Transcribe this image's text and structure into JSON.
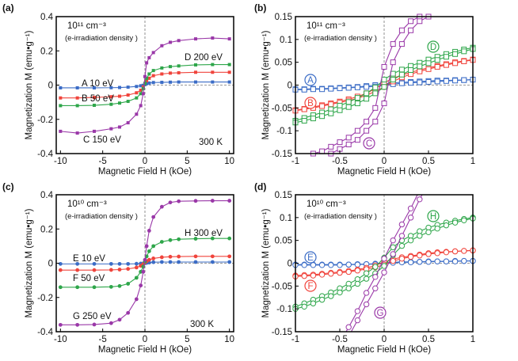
{
  "colors": {
    "blue": "#3b6cc6",
    "red": "#f0443c",
    "green": "#2ea64a",
    "purple": "#9a38a8"
  },
  "chart_data": [
    {
      "panel": "(a)",
      "type": "line",
      "marker": "filled-square",
      "xlabel": "Magnetic Field H (kOe)",
      "ylabel": "Magnetization M (emu•g⁻¹)",
      "xlim": [
        -10.5,
        10.5
      ],
      "ylim": [
        -0.4,
        0.4
      ],
      "xticks": [
        "-10",
        "-5",
        "0",
        "5",
        "10"
      ],
      "xtick_values": [
        -10,
        -5,
        0,
        5,
        10
      ],
      "yticks": [
        "-0.4",
        "-0.2",
        "0",
        "0.2",
        "0.4"
      ],
      "ytick_values": [
        -0.4,
        -0.2,
        0,
        0.2,
        0.4
      ],
      "density": "10¹¹ cm⁻³",
      "density_note": "(e-irradiation density )",
      "temperature": "300 K",
      "x": [
        -10,
        -8,
        -6,
        -4,
        -3,
        -2,
        -1,
        -0.5,
        -0.2,
        0,
        0.2,
        0.5,
        1,
        2,
        3,
        4,
        6,
        8,
        10
      ],
      "series": [
        {
          "name": "A 10 eV",
          "color": "blue",
          "values": [
            -0.016,
            -0.016,
            -0.016,
            -0.015,
            -0.014,
            -0.012,
            -0.008,
            -0.004,
            -0.001,
            0.003,
            0.008,
            0.012,
            0.015,
            0.016,
            0.017,
            0.018,
            0.018,
            0.018,
            0.018
          ]
        },
        {
          "name": "B 50 eV",
          "color": "red",
          "values": [
            -0.075,
            -0.075,
            -0.072,
            -0.068,
            -0.065,
            -0.058,
            -0.045,
            -0.03,
            -0.01,
            0.01,
            0.025,
            0.04,
            0.055,
            0.065,
            0.07,
            0.072,
            0.075,
            0.075,
            0.075
          ]
        },
        {
          "name": "D 200 eV",
          "color": "green",
          "values": [
            -0.12,
            -0.12,
            -0.118,
            -0.112,
            -0.105,
            -0.095,
            -0.075,
            -0.05,
            -0.02,
            0.01,
            0.04,
            0.065,
            0.085,
            0.1,
            0.108,
            0.112,
            0.118,
            0.12,
            0.12
          ]
        },
        {
          "name": "C 150 eV",
          "color": "purple",
          "values": [
            -0.27,
            -0.28,
            -0.27,
            -0.255,
            -0.245,
            -0.22,
            -0.17,
            -0.12,
            -0.05,
            0.05,
            0.13,
            0.16,
            0.19,
            0.23,
            0.25,
            0.26,
            0.27,
            0.275,
            0.27
          ]
        }
      ]
    },
    {
      "panel": "(b)",
      "type": "line",
      "marker": "open-square",
      "xlabel": "Magnetic Field H (kOe)",
      "ylabel": "Magnetization M (emu•g⁻¹)",
      "xlim": [
        -1,
        1
      ],
      "ylim": [
        -0.15,
        0.15
      ],
      "xticks": [
        "-1",
        "-0.5",
        "0",
        "0.5",
        "1"
      ],
      "xtick_values": [
        -1,
        -0.5,
        0,
        0.5,
        1
      ],
      "yticks": [
        "-0.15",
        "-0.1",
        "-0.05",
        "0",
        "0.05",
        "0.1",
        "0.15"
      ],
      "ytick_values": [
        -0.15,
        -0.1,
        -0.05,
        0,
        0.05,
        0.1,
        0.15
      ],
      "density": "10¹¹ cm⁻³",
      "density_note": "(e-irradiation density )",
      "x": [
        -1,
        -0.9,
        -0.8,
        -0.7,
        -0.6,
        -0.5,
        -0.4,
        -0.3,
        -0.2,
        -0.1,
        0,
        0.1,
        0.2,
        0.3,
        0.4,
        0.5,
        0.6,
        0.7,
        0.8,
        0.9,
        1
      ],
      "series": [
        {
          "name": "A",
          "color": "blue",
          "branches": [
            [
              -0.009,
              -0.009,
              -0.008,
              -0.008,
              -0.007,
              -0.006,
              -0.005,
              -0.004,
              -0.002,
              0.0,
              0.003,
              0.005,
              0.006,
              0.007,
              0.008,
              0.009,
              0.01,
              0.01,
              0.011,
              0.011,
              0.012
            ],
            [
              -0.01,
              -0.01,
              -0.009,
              -0.009,
              -0.008,
              -0.007,
              -0.006,
              -0.005,
              -0.004,
              -0.003,
              -0.001,
              0.002,
              0.004,
              0.005,
              0.006,
              0.007,
              0.008,
              0.009,
              0.01,
              0.011,
              0.012
            ]
          ]
        },
        {
          "name": "B",
          "color": "red",
          "branches": [
            [
              -0.055,
              -0.052,
              -0.048,
              -0.044,
              -0.04,
              -0.036,
              -0.031,
              -0.025,
              -0.018,
              -0.008,
              0.005,
              0.015,
              0.022,
              0.028,
              0.033,
              0.038,
              0.042,
              0.046,
              0.05,
              0.053,
              0.056
            ],
            [
              -0.056,
              -0.053,
              -0.05,
              -0.046,
              -0.042,
              -0.038,
              -0.034,
              -0.029,
              -0.022,
              -0.014,
              -0.004,
              0.008,
              0.017,
              0.024,
              0.03,
              0.035,
              0.04,
              0.044,
              0.048,
              0.052,
              0.055
            ]
          ]
        },
        {
          "name": "D",
          "color": "green",
          "branches": [
            [
              -0.078,
              -0.072,
              -0.066,
              -0.06,
              -0.053,
              -0.045,
              -0.037,
              -0.028,
              -0.018,
              -0.005,
              0.012,
              0.025,
              0.034,
              0.042,
              0.049,
              0.056,
              0.062,
              0.068,
              0.073,
              0.078,
              0.082
            ],
            [
              -0.082,
              -0.078,
              -0.073,
              -0.068,
              -0.062,
              -0.055,
              -0.048,
              -0.04,
              -0.03,
              -0.018,
              -0.004,
              0.012,
              0.023,
              0.033,
              0.041,
              0.048,
              0.055,
              0.062,
              0.068,
              0.074,
              0.079
            ]
          ]
        },
        {
          "name": "C",
          "color": "purple",
          "branches": [
            [
              -0.16,
              -0.155,
              -0.15,
              -0.145,
              -0.135,
              -0.125,
              -0.115,
              -0.1,
              -0.08,
              -0.05,
              0.04,
              0.09,
              0.12,
              0.14,
              0.15,
              0.155,
              0.16,
              0.165,
              0.17,
              0.17,
              0.17
            ],
            [
              -0.17,
              -0.165,
              -0.16,
              -0.155,
              -0.15,
              -0.14,
              -0.13,
              -0.12,
              -0.1,
              -0.08,
              -0.04,
              0.05,
              0.09,
              0.12,
              0.14,
              0.15,
              0.155,
              0.16,
              0.165,
              0.17,
              0.17
            ]
          ]
        }
      ]
    },
    {
      "panel": "(c)",
      "type": "line",
      "marker": "filled-circle",
      "xlabel": "Magnetic Field H (kOe)",
      "ylabel": "Magnetization M (emu•g⁻¹)",
      "xlim": [
        -10.5,
        10.5
      ],
      "ylim": [
        -0.4,
        0.4
      ],
      "xticks": [
        "-10",
        "-5",
        "0",
        "5",
        "10"
      ],
      "xtick_values": [
        -10,
        -5,
        0,
        5,
        10
      ],
      "yticks": [
        "-0.4",
        "-0.2",
        "0",
        "0.2",
        "0.4"
      ],
      "ytick_values": [
        -0.4,
        -0.2,
        0,
        0.2,
        0.4
      ],
      "density": "10¹⁰ cm⁻³",
      "density_note": "(e-irradiation density )",
      "temperature": "300 K",
      "x": [
        -10,
        -8,
        -6,
        -4,
        -3,
        -2,
        -1,
        -0.5,
        -0.2,
        0,
        0.2,
        0.5,
        1,
        2,
        3,
        4,
        6,
        8,
        10
      ],
      "series": [
        {
          "name": "E 10 eV",
          "color": "blue",
          "values": [
            -0.004,
            -0.004,
            -0.004,
            -0.004,
            -0.004,
            -0.004,
            -0.003,
            -0.002,
            -0.001,
            0.0,
            0.002,
            0.004,
            0.006,
            0.007,
            0.007,
            0.007,
            0.007,
            0.007,
            0.007
          ]
        },
        {
          "name": "F 50 eV",
          "color": "red",
          "values": [
            -0.04,
            -0.04,
            -0.04,
            -0.039,
            -0.037,
            -0.033,
            -0.025,
            -0.015,
            -0.005,
            0.005,
            0.012,
            0.02,
            0.028,
            0.035,
            0.038,
            0.039,
            0.04,
            0.04,
            0.04
          ]
        },
        {
          "name": "H 300 eV",
          "color": "green",
          "values": [
            -0.14,
            -0.14,
            -0.14,
            -0.138,
            -0.133,
            -0.12,
            -0.085,
            -0.05,
            -0.02,
            0.01,
            0.04,
            0.07,
            0.1,
            0.125,
            0.135,
            0.14,
            0.143,
            0.145,
            0.145
          ]
        },
        {
          "name": "G 250 eV",
          "color": "purple",
          "values": [
            -0.36,
            -0.36,
            -0.358,
            -0.35,
            -0.33,
            -0.29,
            -0.21,
            -0.13,
            -0.05,
            0.02,
            0.1,
            0.19,
            0.27,
            0.33,
            0.355,
            0.362,
            0.364,
            0.365,
            0.365
          ]
        }
      ]
    },
    {
      "panel": "(d)",
      "type": "line",
      "marker": "open-circle",
      "xlabel": "Magnetic Field H (kOe)",
      "ylabel": "Magnetization M (emu•g⁻¹)",
      "xlim": [
        -1,
        1
      ],
      "ylim": [
        -0.15,
        0.15
      ],
      "xticks": [
        "-1",
        "-0.5",
        "0",
        "0.5",
        "1"
      ],
      "xtick_values": [
        -1,
        -0.5,
        0,
        0.5,
        1
      ],
      "yticks": [
        "-0.15",
        "-0.1",
        "-0.05",
        "0",
        "0.05",
        "0.1",
        "0.15"
      ],
      "ytick_values": [
        -0.15,
        -0.1,
        -0.05,
        0,
        0.05,
        0.1,
        0.15
      ],
      "density": "10¹⁰ cm⁻³",
      "density_note": "(e-irradiation density )",
      "x": [
        -1,
        -0.9,
        -0.8,
        -0.7,
        -0.6,
        -0.5,
        -0.4,
        -0.3,
        -0.2,
        -0.1,
        0,
        0.1,
        0.2,
        0.3,
        0.4,
        0.5,
        0.6,
        0.7,
        0.8,
        0.9,
        1
      ],
      "series": [
        {
          "name": "E",
          "color": "blue",
          "branches": [
            [
              -0.003,
              -0.003,
              -0.003,
              -0.003,
              -0.003,
              -0.003,
              -0.003,
              -0.002,
              -0.002,
              -0.001,
              0.001,
              0.002,
              0.003,
              0.003,
              0.003,
              0.004,
              0.004,
              0.004,
              0.005,
              0.005,
              0.005
            ],
            [
              -0.004,
              -0.004,
              -0.004,
              -0.004,
              -0.004,
              -0.004,
              -0.003,
              -0.003,
              -0.002,
              -0.002,
              -0.001,
              0.001,
              0.002,
              0.002,
              0.003,
              0.003,
              0.004,
              0.004,
              0.004,
              0.005,
              0.005
            ]
          ]
        },
        {
          "name": "F",
          "color": "red",
          "branches": [
            [
              -0.027,
              -0.026,
              -0.025,
              -0.023,
              -0.021,
              -0.019,
              -0.017,
              -0.014,
              -0.01,
              -0.005,
              0.003,
              0.009,
              0.013,
              0.016,
              0.019,
              0.022,
              0.024,
              0.025,
              0.026,
              0.027,
              0.028
            ],
            [
              -0.029,
              -0.028,
              -0.027,
              -0.025,
              -0.023,
              -0.021,
              -0.019,
              -0.016,
              -0.013,
              -0.009,
              -0.003,
              0.005,
              0.01,
              0.014,
              0.017,
              0.02,
              0.022,
              0.024,
              0.026,
              0.027,
              0.028
            ]
          ]
        },
        {
          "name": "H",
          "color": "green",
          "branches": [
            [
              -0.095,
              -0.088,
              -0.08,
              -0.072,
              -0.064,
              -0.055,
              -0.045,
              -0.035,
              -0.022,
              -0.008,
              0.012,
              0.035,
              0.05,
              0.06,
              0.07,
              0.078,
              0.084,
              0.089,
              0.093,
              0.097,
              0.1
            ],
            [
              -0.1,
              -0.095,
              -0.088,
              -0.08,
              -0.072,
              -0.064,
              -0.055,
              -0.045,
              -0.034,
              -0.022,
              -0.006,
              0.018,
              0.038,
              0.05,
              0.06,
              0.068,
              0.076,
              0.083,
              0.089,
              0.094,
              0.098
            ]
          ]
        },
        {
          "name": "G",
          "color": "purple",
          "branches": [
            [
              -0.37,
              -0.33,
              -0.29,
              -0.25,
              -0.21,
              -0.175,
              -0.14,
              -0.105,
              -0.065,
              -0.03,
              0.01,
              0.05,
              0.085,
              0.12,
              0.16,
              0.2,
              0.24,
              0.28,
              0.32,
              0.36,
              0.4
            ],
            [
              -0.4,
              -0.36,
              -0.32,
              -0.28,
              -0.24,
              -0.2,
              -0.16,
              -0.125,
              -0.09,
              -0.055,
              -0.02,
              0.02,
              0.06,
              0.1,
              0.14,
              0.175,
              0.215,
              0.255,
              0.295,
              0.335,
              0.37
            ]
          ]
        }
      ]
    }
  ]
}
